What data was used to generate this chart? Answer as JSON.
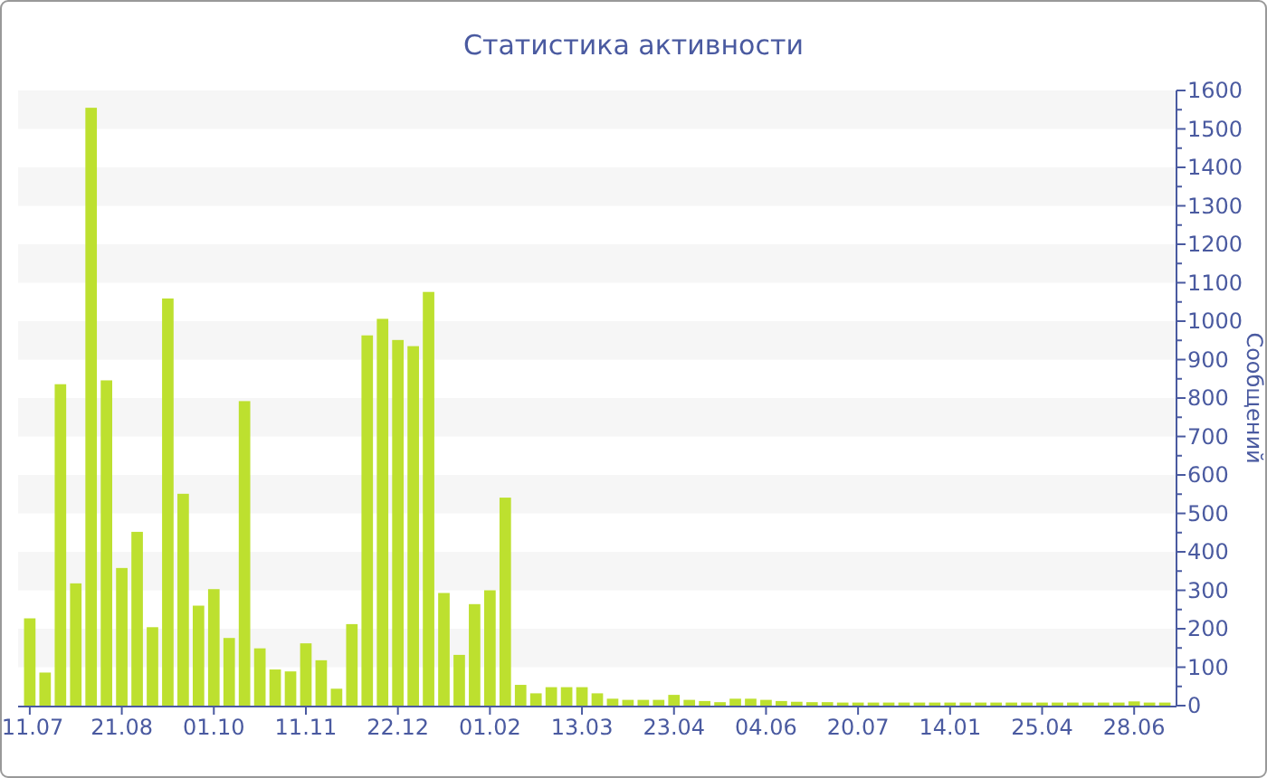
{
  "chart_data": {
    "type": "bar",
    "title": "Статистика активности",
    "ylabel": "Сообщений",
    "color": "#bde02f",
    "categories": [
      "11.07",
      null,
      null,
      null,
      null,
      null,
      "21.08",
      null,
      null,
      null,
      null,
      null,
      "01.10",
      null,
      null,
      null,
      null,
      null,
      "11.11",
      null,
      null,
      null,
      null,
      null,
      "22.12",
      null,
      null,
      null,
      null,
      null,
      "01.02",
      null,
      null,
      null,
      null,
      null,
      "13.03",
      null,
      null,
      null,
      null,
      null,
      "23.04",
      null,
      null,
      null,
      null,
      null,
      "04.06",
      null,
      null,
      null,
      null,
      null,
      "20.07",
      null,
      null,
      null,
      null,
      null,
      "14.01",
      null,
      null,
      null,
      null,
      null,
      "25.04",
      null,
      null,
      null,
      null,
      null,
      "28.06",
      null,
      null
    ],
    "values": [
      227,
      86,
      836,
      318,
      1555,
      846,
      358,
      452,
      204,
      1059,
      551,
      260,
      303,
      176,
      792,
      149,
      94,
      89,
      162,
      118,
      44,
      212,
      963,
      1006,
      951,
      935,
      1076,
      293,
      132,
      264,
      300,
      541,
      54,
      32,
      48,
      48,
      48,
      32,
      18,
      15,
      15,
      15,
      28,
      15,
      12,
      9,
      18,
      18,
      15,
      12,
      10,
      9,
      9,
      8,
      8,
      8,
      8,
      8,
      8,
      8,
      8,
      8,
      8,
      8,
      8,
      8,
      8,
      8,
      8,
      8,
      8,
      8,
      11,
      8,
      8
    ],
    "ylim": [
      0,
      1600
    ],
    "yticks": [
      0,
      {
        "value": 50,
        "label": null
      },
      100,
      {
        "value": 150,
        "label": null
      },
      200,
      {
        "value": 250,
        "label": null
      },
      300,
      {
        "value": 350,
        "label": null
      },
      400,
      {
        "value": 450,
        "label": null
      },
      500,
      {
        "value": 550,
        "label": null
      },
      600,
      {
        "value": 650,
        "label": null
      },
      700,
      {
        "value": 750,
        "label": null
      },
      800,
      {
        "value": 850,
        "label": null
      },
      900,
      {
        "value": 950,
        "label": null
      },
      1000,
      {
        "value": 1050,
        "label": null
      },
      1100,
      {
        "value": 1150,
        "label": null
      },
      1200,
      {
        "value": 1250,
        "label": null
      },
      1300,
      {
        "value": 1350,
        "label": null
      },
      1400,
      {
        "value": 1450,
        "label": null
      },
      1500,
      {
        "value": 1550,
        "label": null
      },
      1600
    ],
    "bands": [
      {
        "axis": "y",
        "from": 100,
        "to": 200,
        "color": "#f6f6f6"
      },
      {
        "axis": "y",
        "from": 300,
        "to": 400,
        "color": "#f6f6f6"
      },
      {
        "axis": "y",
        "from": 500,
        "to": 600,
        "color": "#f6f6f6"
      },
      {
        "axis": "y",
        "from": 700,
        "to": 800,
        "color": "#f6f6f6"
      },
      {
        "axis": "y",
        "from": 900,
        "to": 1000,
        "color": "#f6f6f6"
      },
      {
        "axis": "y",
        "from": 1100,
        "to": 1200,
        "color": "#f6f6f6"
      },
      {
        "axis": "y",
        "from": 1300,
        "to": 1400,
        "color": "#f6f6f6"
      },
      {
        "axis": "y",
        "from": 1500,
        "to": 1600,
        "color": "#f6f6f6"
      }
    ]
  }
}
